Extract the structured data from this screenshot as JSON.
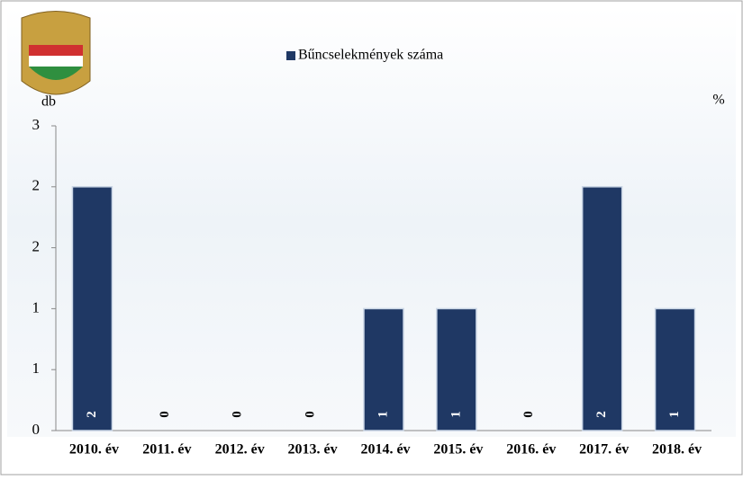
{
  "chart_data": {
    "type": "bar",
    "legend": "Bűncselekmények száma",
    "y_label": "db",
    "y2_label": "%",
    "categories": [
      "2010. év",
      "2011. év",
      "2012. év",
      "2013. év",
      "2014. év",
      "2015. év",
      "2016. év",
      "2017. év",
      "2018. év"
    ],
    "series": [
      {
        "name": "Bűncselekmények száma",
        "color": "#1f3864",
        "values": [
          2,
          0,
          0,
          0,
          1,
          1,
          0,
          2,
          1
        ]
      }
    ],
    "ylim": [
      0,
      2.5
    ],
    "yticks": [
      0,
      {
        "value": 0.5,
        "label": "1"
      },
      1,
      {
        "value": 1.5,
        "label": "2"
      },
      2,
      {
        "value": 2.5,
        "label": "3"
      }
    ]
  }
}
